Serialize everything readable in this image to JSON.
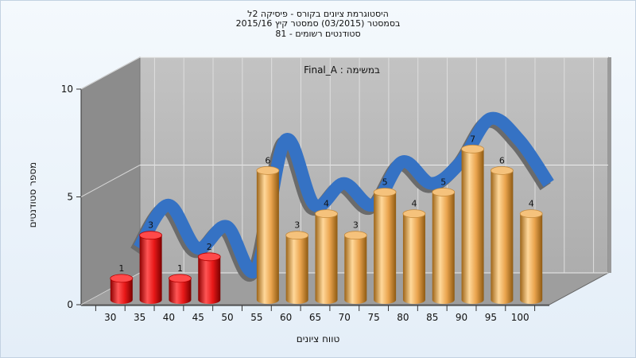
{
  "title_lines": [
    "היסטוגרמת ציונים בקורס - פיסיקה 2ל",
    "בסמסטר  (03/2015)  סמסטר קיץ 2015/16",
    "סטודנטים רשומים - 81"
  ],
  "chart_data": {
    "type": "bar",
    "subtitle": "במשימה : Final_A",
    "xlabel": "טווח ציונים",
    "ylabel": "מספר סטודנטים",
    "ylim": [
      0,
      10
    ],
    "yticks": [
      "0",
      "5",
      "10"
    ],
    "categories": [
      "30",
      "35",
      "40",
      "45",
      "50",
      "55",
      "60",
      "65",
      "70",
      "75",
      "80",
      "85",
      "90",
      "95",
      "100"
    ],
    "values": [
      1,
      3,
      1,
      2,
      null,
      6,
      3,
      4,
      3,
      5,
      4,
      5,
      7,
      6,
      4
    ],
    "fail_threshold": 50,
    "colors": {
      "fail": "#e41b1b",
      "pass": "#e9a44c",
      "trend": "#3572c4"
    }
  }
}
